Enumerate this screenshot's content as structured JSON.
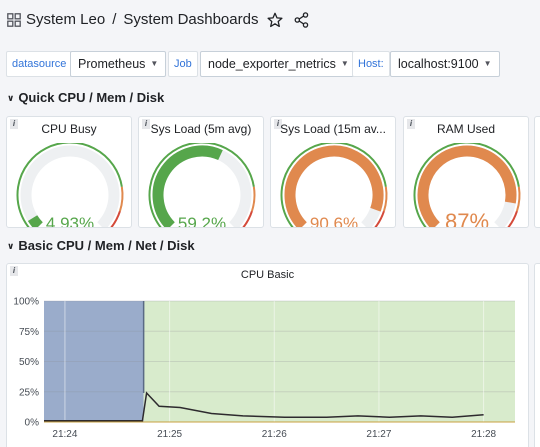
{
  "header": {
    "folder": "System Leo",
    "separator": "/",
    "dashboard": "System Dashboards",
    "star_icon": "star-icon",
    "share_icon": "share-icon"
  },
  "variables": [
    {
      "label": "datasource",
      "value": "Prometheus"
    },
    {
      "label": "Job",
      "value": "node_exporter_metrics"
    },
    {
      "label": "Host:",
      "value": "localhost:9100"
    }
  ],
  "rows": {
    "quick": "Quick CPU / Mem / Disk",
    "basic": "Basic CPU / Mem / Net / Disk"
  },
  "colors": {
    "green": "#56a64b",
    "orange": "#e0894e",
    "red": "#d44a3a",
    "track": "#eef0f2",
    "blue_area": "#9aaccb",
    "green_area": "#d8ebcc"
  },
  "gauges": [
    {
      "title": "CPU Busy",
      "value": "4.93%",
      "fraction": 0.0493,
      "color": "#56a64b"
    },
    {
      "title": "Sys Load (5m avg)",
      "value": "59.2%",
      "fraction": 0.592,
      "color": "#56a64b"
    },
    {
      "title": "Sys Load (15m av...",
      "value": "90.6%",
      "fraction": 0.906,
      "color": "#e0894e"
    },
    {
      "title": "RAM Used",
      "value": "87%",
      "fraction": 0.87,
      "color": "#e0894e"
    }
  ],
  "cpu_panel": {
    "title": "CPU Basic",
    "info_label": "i"
  },
  "chart_data": {
    "type": "area",
    "title": "CPU Basic",
    "x_ticks": [
      "21:24",
      "21:25",
      "21:26",
      "21:27",
      "21:28"
    ],
    "y_ticks": [
      "100%",
      "75%",
      "50%",
      "25%",
      "0%"
    ],
    "ylim": [
      0,
      100
    ],
    "grid": true,
    "series": [
      {
        "color": "#9aaccb",
        "values": [
          100,
          100,
          100,
          100,
          0,
          0,
          0,
          0,
          0,
          0,
          0,
          0,
          0,
          0,
          0,
          0
        ]
      },
      {
        "color": "#d8ebcc",
        "values": [
          0,
          0,
          0,
          0,
          100,
          100,
          100,
          100,
          100,
          100,
          100,
          100,
          100,
          100,
          100,
          100
        ]
      },
      {
        "color": "#2d2a2e",
        "values": [
          1,
          1,
          1,
          1,
          24,
          13,
          12,
          7,
          5,
          4,
          4,
          5,
          4,
          5,
          4,
          6
        ]
      }
    ],
    "x": [
      0,
      0.25,
      0.5,
      0.94,
      0.98,
      1.1,
      1.3,
      1.6,
      1.9,
      2.3,
      2.7,
      3.0,
      3.3,
      3.6,
      3.9,
      4.2
    ]
  }
}
